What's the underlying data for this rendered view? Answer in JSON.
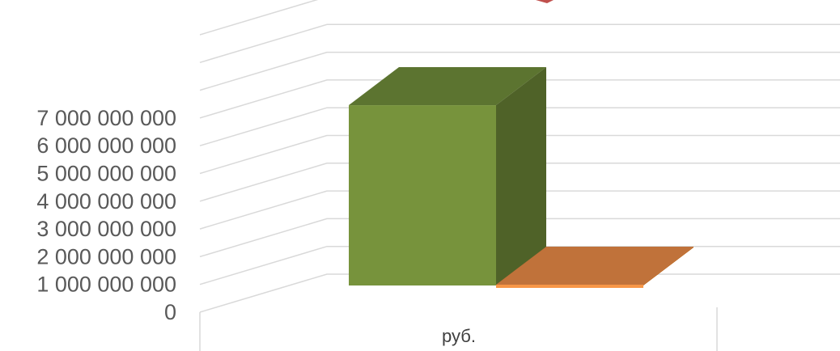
{
  "chart_data": {
    "type": "bar",
    "projection": "3d",
    "categories": [
      "руб."
    ],
    "series": [
      {
        "values": [
          6500000000
        ],
        "color": "#77933c"
      },
      {
        "values": [
          30000000
        ],
        "color": "#f79646"
      }
    ],
    "yticks": [
      "0",
      "1 000 000 000",
      "2 000 000 000",
      "3 000 000 000",
      "4 000 000 000",
      "5 000 000 000",
      "6 000 000 000",
      "7 000 000 000"
    ],
    "ylim": [
      0,
      10000000000
    ],
    "grid": true,
    "legend": "none",
    "colors": {
      "grid": "#d9d9d9",
      "bar1_front": "#77933c",
      "bar1_side": "#4f6228",
      "bar1_top": "#5c7430",
      "bar2_front": "#f79646",
      "bar2_side": "#b65708",
      "bar2_top": "#c0723a",
      "decor": "#c0504d"
    }
  }
}
